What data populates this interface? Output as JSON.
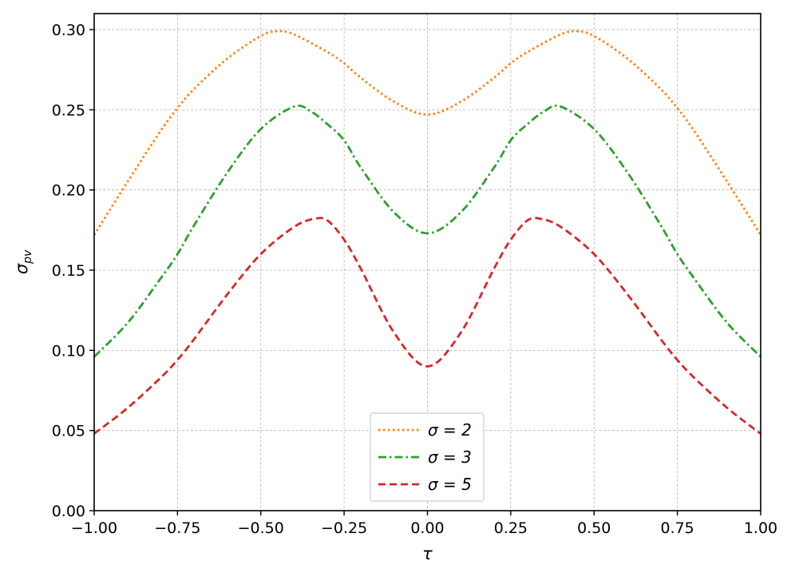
{
  "chart_data": {
    "type": "line",
    "xlabel": "τ",
    "ylabel": "σ",
    "ylabel_sub": "pv",
    "xlim": [
      -1.0,
      1.0
    ],
    "ylim": [
      0.0,
      0.31
    ],
    "xticks": [
      -1.0,
      -0.75,
      -0.5,
      -0.25,
      0.0,
      0.25,
      0.5,
      0.75,
      1.0
    ],
    "xtick_labels": [
      "−1.00",
      "−0.75",
      "−0.50",
      "−0.25",
      "0.00",
      "0.25",
      "0.50",
      "0.75",
      "1.00"
    ],
    "yticks": [
      0.0,
      0.05,
      0.1,
      0.15,
      0.2,
      0.25,
      0.3
    ],
    "ytick_labels": [
      "0.00",
      "0.05",
      "0.10",
      "0.15",
      "0.20",
      "0.25",
      "0.30"
    ],
    "grid": true,
    "legend_position": "bottom-center",
    "series": [
      {
        "name": "σ = 2",
        "legend_label": "σ = 2",
        "color": "#ff7f0e",
        "dash": "dotted",
        "x": [
          -1.0,
          -0.9,
          -0.8,
          -0.75,
          -0.7,
          -0.6,
          -0.5,
          -0.45,
          -0.4,
          -0.3,
          -0.25,
          -0.2,
          -0.1,
          0.0,
          0.1,
          0.2,
          0.25,
          0.3,
          0.4,
          0.45,
          0.5,
          0.6,
          0.7,
          0.75,
          0.8,
          0.9,
          1.0
        ],
        "y": [
          0.172,
          0.205,
          0.237,
          0.251,
          0.263,
          0.282,
          0.296,
          0.299,
          0.297,
          0.286,
          0.279,
          0.27,
          0.255,
          0.247,
          0.255,
          0.27,
          0.279,
          0.286,
          0.297,
          0.299,
          0.296,
          0.282,
          0.263,
          0.251,
          0.237,
          0.205,
          0.172
        ]
      },
      {
        "name": "σ = 3",
        "legend_label": "σ = 3",
        "color": "#2ca02c",
        "dash": "dashdot",
        "x": [
          -1.0,
          -0.9,
          -0.8,
          -0.75,
          -0.7,
          -0.6,
          -0.5,
          -0.4,
          -0.35,
          -0.3,
          -0.25,
          -0.2,
          -0.1,
          0.0,
          0.1,
          0.2,
          0.25,
          0.3,
          0.35,
          0.4,
          0.5,
          0.6,
          0.7,
          0.75,
          0.8,
          0.9,
          1.0
        ],
        "y": [
          0.096,
          0.117,
          0.145,
          0.16,
          0.178,
          0.211,
          0.238,
          0.252,
          0.249,
          0.241,
          0.231,
          0.214,
          0.186,
          0.173,
          0.186,
          0.214,
          0.231,
          0.241,
          0.249,
          0.252,
          0.238,
          0.211,
          0.178,
          0.16,
          0.145,
          0.117,
          0.096
        ]
      },
      {
        "name": "σ = 5",
        "legend_label": "σ = 5",
        "color": "#d62728",
        "dash": "dashed",
        "x": [
          -1.0,
          -0.9,
          -0.8,
          -0.75,
          -0.7,
          -0.6,
          -0.5,
          -0.4,
          -0.34,
          -0.3,
          -0.25,
          -0.2,
          -0.1,
          0.0,
          0.1,
          0.2,
          0.25,
          0.3,
          0.34,
          0.4,
          0.5,
          0.6,
          0.7,
          0.75,
          0.8,
          0.9,
          1.0
        ],
        "y": [
          0.048,
          0.064,
          0.083,
          0.094,
          0.107,
          0.135,
          0.16,
          0.177,
          0.182,
          0.181,
          0.169,
          0.151,
          0.111,
          0.09,
          0.111,
          0.151,
          0.169,
          0.181,
          0.182,
          0.177,
          0.16,
          0.135,
          0.107,
          0.094,
          0.083,
          0.064,
          0.048
        ]
      }
    ]
  }
}
